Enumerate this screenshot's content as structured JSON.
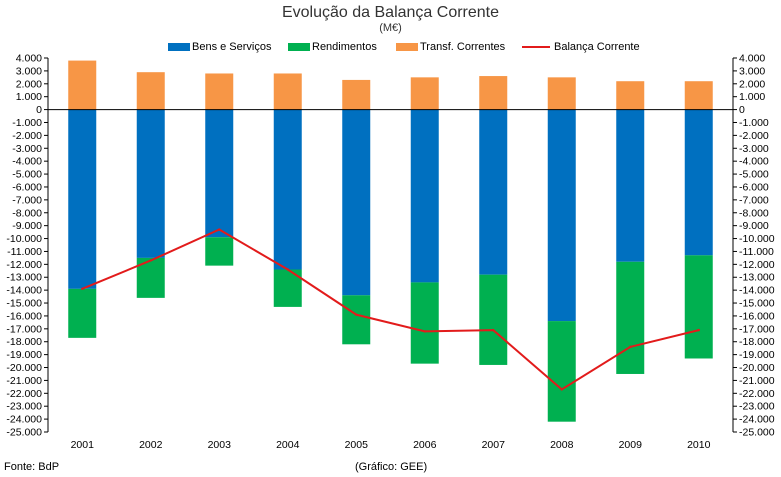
{
  "title": "Evolução da Balança Corrente",
  "subtitle": "(M€)",
  "source": "Fonte: BdP",
  "credit": "(Gráfico: GEE)",
  "colors": {
    "bens": "#0070c0",
    "rendimentos": "#00b050",
    "transf": "#f79646",
    "balanca": "#e21b1b"
  },
  "chart_data": {
    "type": "bar",
    "stacked": true,
    "categories": [
      "2001",
      "2002",
      "2003",
      "2004",
      "2005",
      "2006",
      "2007",
      "2008",
      "2009",
      "2010"
    ],
    "series": [
      {
        "name": "Bens e Serviços",
        "type": "bar",
        "values": [
          -13900,
          -11500,
          -9900,
          -12400,
          -14400,
          -13400,
          -12800,
          -16400,
          -11800,
          -11300
        ]
      },
      {
        "name": "Rendimentos",
        "type": "bar",
        "values": [
          -3800,
          -3100,
          -2200,
          -2900,
          -3800,
          -6300,
          -7000,
          -7800,
          -8700,
          -8000
        ]
      },
      {
        "name": "Transf. Correntes",
        "type": "bar",
        "values": [
          3800,
          2900,
          2800,
          2800,
          2300,
          2500,
          2600,
          2500,
          2200,
          2200
        ]
      },
      {
        "name": "Balança Corrente",
        "type": "line",
        "values": [
          -13900,
          -11700,
          -9300,
          -12400,
          -15900,
          -17200,
          -17100,
          -21700,
          -18400,
          -17100
        ]
      }
    ],
    "ylim": [
      -25000,
      4000
    ],
    "ytick_step": 1000,
    "ytick_labels": [
      "4.000",
      "3.000",
      "2.000",
      "1.000",
      "0",
      "-1.000",
      "-2.000",
      "-3.000",
      "-4.000",
      "-5.000",
      "-6.000",
      "-7.000",
      "-8.000",
      "-9.000",
      "-10.000",
      "-11.000",
      "-12.000",
      "-13.000",
      "-14.000",
      "-15.000",
      "-16.000",
      "-17.000",
      "-18.000",
      "-19.000",
      "-20.000",
      "-21.000",
      "-22.000",
      "-23.000",
      "-24.000",
      "-25.000"
    ],
    "legend_position": "top",
    "grid": false
  }
}
